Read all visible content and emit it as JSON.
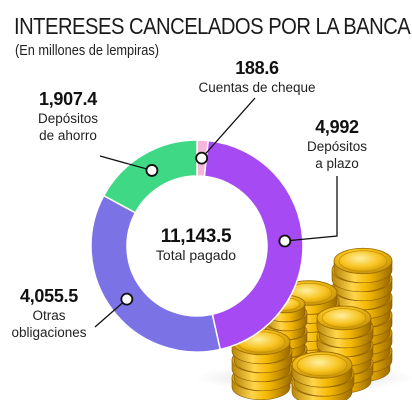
{
  "title": "INTERESES CANCELADOS POR LA BANCA",
  "subtitle": "(En millones de lempiras)",
  "chart_data": {
    "type": "pie",
    "donut": true,
    "center": {
      "value": "11,143.5",
      "label": "Total pagado"
    },
    "slices": [
      {
        "key": "cheque",
        "value": 188.6,
        "value_label": "188.6",
        "label_lines": [
          "Cuentas de cheque"
        ],
        "color": "#f4b7d8"
      },
      {
        "key": "plazo",
        "value": 4992,
        "value_label": "4,992",
        "label_lines": [
          "Depósitos",
          "a plazo"
        ],
        "color": "#a64bf4"
      },
      {
        "key": "otras",
        "value": 4055.5,
        "value_label": "4,055.5",
        "label_lines": [
          "Otras",
          "obligaciones"
        ],
        "color": "#7b72e6"
      },
      {
        "key": "ahorro",
        "value": 1907.4,
        "value_label": "1,907.4",
        "label_lines": [
          "Depósitos",
          "de ahorro"
        ],
        "color": "#3fd985"
      }
    ]
  }
}
